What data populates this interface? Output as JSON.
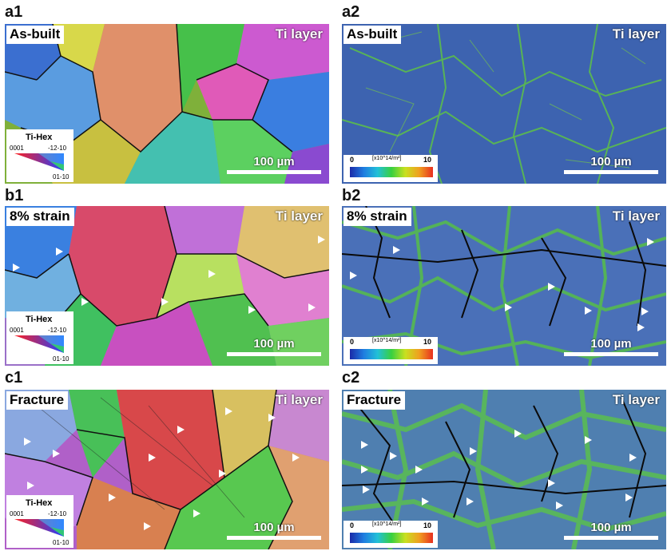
{
  "panels": [
    {
      "id": "a1",
      "condition": "As-built",
      "layer": "Ti layer",
      "scale": "100 µm",
      "map": "ipf"
    },
    {
      "id": "a2",
      "condition": "As-built",
      "layer": "Ti layer",
      "scale": "100 µm",
      "map": "kam"
    },
    {
      "id": "b1",
      "condition": "8% strain",
      "layer": "Ti layer",
      "scale": "100 µm",
      "map": "ipf"
    },
    {
      "id": "b2",
      "condition": "8% strain",
      "layer": "Ti layer",
      "scale": "100 µm",
      "map": "kam"
    },
    {
      "id": "c1",
      "condition": "Fracture",
      "layer": "Ti layer",
      "scale": "100 µm",
      "map": "ipf"
    },
    {
      "id": "c2",
      "condition": "Fracture",
      "layer": "Ti layer",
      "scale": "100 µm",
      "map": "kam"
    }
  ],
  "ipf_legend": {
    "title": "Ti-Hex",
    "corner_0001": "0001",
    "corner_1210": "-12-10",
    "corner_0110": "01-10"
  },
  "kam_legend": {
    "min": "0",
    "max": "10",
    "unit": "[x10^14/m²]"
  },
  "colors": {
    "kam_base": "#3a5fa8",
    "kam_strain": "#56c23a",
    "boundary": "#111111",
    "arrow": "#ffffff"
  }
}
